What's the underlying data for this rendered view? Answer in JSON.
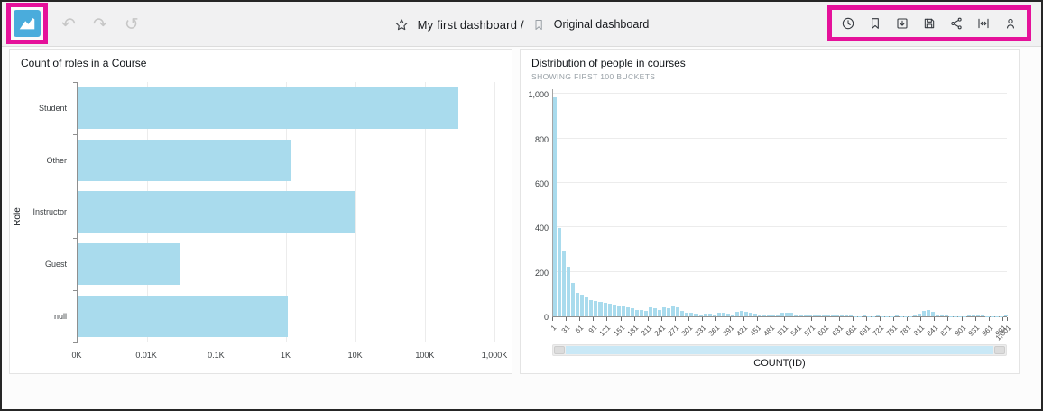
{
  "colors": {
    "highlight_magenta": "#e5119a",
    "logo_blue": "#4aacdc",
    "bar_blue": "#a9dbed",
    "topbar_bg": "#f1f1f2"
  },
  "topbar": {
    "history_icons": [
      "undo-icon",
      "redo-icon",
      "reset-icon"
    ],
    "undo_glyph": "↶",
    "redo_glyph": "↷",
    "reset_glyph": "↺",
    "breadcrumb": {
      "primary": "My first dashboard /",
      "secondary": "Original dashboard"
    },
    "right_toolbar_icons": [
      "clock-icon",
      "bookmark-icon",
      "export-icon",
      "save-icon",
      "share-icon",
      "fit-width-icon",
      "user-icon"
    ]
  },
  "chart_data": [
    {
      "type": "bar",
      "orientation": "horizontal",
      "title": "Count of roles in a Course",
      "ylabel": "Role",
      "categories": [
        "Student",
        "Other",
        "Instructor",
        "Guest",
        "null"
      ],
      "values": [
        300000,
        1150,
        10000,
        30,
        1050
      ],
      "x_scale": "log",
      "x_domain": [
        1,
        1000000
      ],
      "x_ticks": [
        "0K",
        "0.01K",
        "0.1K",
        "1K",
        "10K",
        "100K",
        "1,000K"
      ],
      "grid": "vertical"
    },
    {
      "type": "bar",
      "subtype": "histogram",
      "title": "Distribution of people in courses",
      "subtitle": "SHOWING FIRST 100 BUCKETS",
      "xlabel": "COUNT(ID)",
      "ylim": [
        0,
        1025
      ],
      "y_tick_values": [
        0,
        200,
        400,
        600,
        800,
        1000
      ],
      "y_tick_labels": [
        "0",
        "200",
        "400",
        "600",
        "800",
        "1,000"
      ],
      "x_tick_labels": [
        "1",
        "31",
        "61",
        "91",
        "121",
        "151",
        "181",
        "211",
        "241",
        "271",
        "301",
        "331",
        "361",
        "391",
        "421",
        "451",
        "481",
        "511",
        "541",
        "571",
        "601",
        "631",
        "661",
        "691",
        "721",
        "751",
        "781",
        "811",
        "841",
        "871",
        "901",
        "931",
        "961",
        "991",
        "1,001"
      ],
      "values": [
        990,
        400,
        295,
        225,
        150,
        107,
        98,
        88,
        75,
        68,
        64,
        60,
        57,
        52,
        48,
        45,
        40,
        35,
        30,
        28,
        25,
        40,
        35,
        30,
        42,
        38,
        45,
        40,
        25,
        18,
        15,
        12,
        10,
        14,
        12,
        10,
        18,
        15,
        12,
        8,
        22,
        25,
        20,
        15,
        12,
        10,
        8,
        6,
        5,
        10,
        15,
        18,
        15,
        10,
        8,
        6,
        5,
        4,
        4,
        3,
        3,
        4,
        5,
        4,
        3,
        3,
        2,
        2,
        3,
        2,
        2,
        3,
        2,
        2,
        2,
        3,
        2,
        2,
        2,
        5,
        12,
        25,
        30,
        22,
        10,
        5,
        3,
        2,
        2,
        2,
        2,
        8,
        10,
        5,
        3,
        2,
        2,
        2,
        2,
        10
      ],
      "grid": "horizontal",
      "legend": "none"
    }
  ]
}
